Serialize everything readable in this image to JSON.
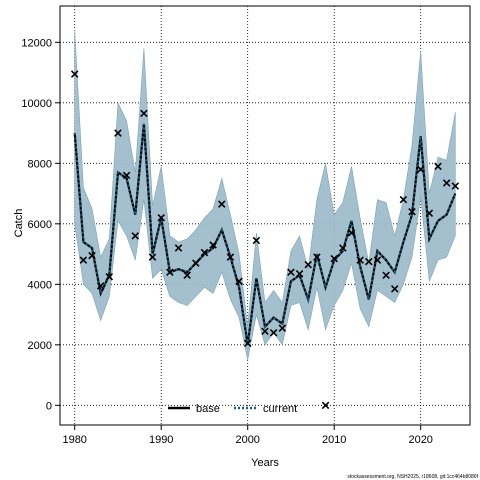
{
  "chart_data": {
    "type": "line",
    "title": "",
    "xlabel": "Years",
    "ylabel": "Catch",
    "xlim": [
      1980,
      2024
    ],
    "ylim": [
      0,
      12000
    ],
    "x_ticks": [
      "1980",
      "1990",
      "2000",
      "2010",
      "2020"
    ],
    "y_ticks": [
      "0",
      "2000",
      "4000",
      "6000",
      "8000",
      "10000",
      "12000"
    ],
    "grid": true,
    "legend_placement": "bottom-center",
    "colors": {
      "band": "#9fbdcc",
      "band_edge": "#7fa3b6",
      "base": "#000000",
      "current": "#1f5a7a",
      "observed": "#000000"
    },
    "years": [
      1980,
      1981,
      1982,
      1983,
      1984,
      1985,
      1986,
      1987,
      1988,
      1989,
      1990,
      1991,
      1992,
      1993,
      1994,
      1995,
      1996,
      1997,
      1998,
      1999,
      2000,
      2001,
      2002,
      2003,
      2004,
      2005,
      2006,
      2007,
      2008,
      2009,
      2010,
      2011,
      2012,
      2013,
      2014,
      2015,
      2016,
      2017,
      2018,
      2019,
      2020,
      2021,
      2022,
      2023,
      2024
    ],
    "series": [
      {
        "name": "base",
        "style": "solid",
        "values": [
          9000,
          5400,
          5200,
          3700,
          4300,
          7700,
          7500,
          6300,
          9300,
          5000,
          6200,
          4400,
          4500,
          4400,
          4700,
          5000,
          5200,
          5800,
          4900,
          3900,
          2000,
          4200,
          2600,
          2900,
          2700,
          4100,
          4300,
          3500,
          5000,
          3900,
          4800,
          5100,
          6100,
          4600,
          3500,
          5100,
          4800,
          4400,
          5400,
          6300,
          8900,
          5500,
          6100,
          6300,
          7000
        ]
      },
      {
        "name": "current",
        "style": "dotted",
        "values": [
          9000,
          5400,
          5200,
          3700,
          4300,
          7700,
          7500,
          6300,
          9300,
          5000,
          6200,
          4400,
          4500,
          4400,
          4700,
          5000,
          5200,
          5800,
          4900,
          3900,
          2000,
          4200,
          2600,
          2900,
          2700,
          4100,
          4300,
          3500,
          5000,
          3900,
          4800,
          5100,
          6100,
          4600,
          3500,
          5100,
          4800,
          4400,
          5400,
          6300,
          8900,
          5500,
          6100,
          6300,
          7000
        ]
      }
    ],
    "band_lower": [
      6000,
      4000,
      3700,
      2800,
      3600,
      6100,
      5600,
      4800,
      6800,
      4200,
      4500,
      3600,
      3400,
      3300,
      3600,
      3900,
      3700,
      4400,
      3500,
      2900,
      1500,
      3000,
      2000,
      2400,
      2000,
      3300,
      3400,
      2500,
      3900,
      2500,
      3300,
      3800,
      4700,
      3200,
      2600,
      3800,
      3600,
      3400,
      4000,
      4900,
      6900,
      4100,
      4800,
      4900,
      5600
    ],
    "band_upper": [
      12400,
      7200,
      6500,
      4900,
      5500,
      10000,
      9400,
      7700,
      11800,
      6600,
      7900,
      5600,
      5400,
      5500,
      5800,
      6200,
      6500,
      7500,
      6300,
      5000,
      2600,
      5700,
      3400,
      3800,
      3400,
      5100,
      5600,
      4500,
      6800,
      8000,
      6300,
      6700,
      7900,
      6200,
      4700,
      6800,
      6700,
      5600,
      6800,
      8600,
      11700,
      7000,
      8200,
      8100,
      9700
    ],
    "observed": [
      {
        "year": 1980,
        "value": 10950
      },
      {
        "year": 1981,
        "value": 4800
      },
      {
        "year": 1982,
        "value": 4950
      },
      {
        "year": 1983,
        "value": 3950
      },
      {
        "year": 1984,
        "value": 4250
      },
      {
        "year": 1985,
        "value": 9000
      },
      {
        "year": 1986,
        "value": 7600
      },
      {
        "year": 1987,
        "value": 5600
      },
      {
        "year": 1988,
        "value": 9650
      },
      {
        "year": 1989,
        "value": 4900
      },
      {
        "year": 1990,
        "value": 6200
      },
      {
        "year": 1991,
        "value": 4400
      },
      {
        "year": 1992,
        "value": 5200
      },
      {
        "year": 1993,
        "value": 4300
      },
      {
        "year": 1994,
        "value": 4700
      },
      {
        "year": 1995,
        "value": 5050
      },
      {
        "year": 1996,
        "value": 5300
      },
      {
        "year": 1997,
        "value": 6650
      },
      {
        "year": 1998,
        "value": 4900
      },
      {
        "year": 1999,
        "value": 4100
      },
      {
        "year": 2000,
        "value": 2050
      },
      {
        "year": 2001,
        "value": 5450
      },
      {
        "year": 2002,
        "value": 2450
      },
      {
        "year": 2003,
        "value": 2400
      },
      {
        "year": 2004,
        "value": 2550
      },
      {
        "year": 2005,
        "value": 4400
      },
      {
        "year": 2006,
        "value": 4350
      },
      {
        "year": 2007,
        "value": 4650
      },
      {
        "year": 2008,
        "value": 4900
      },
      {
        "year": 2009,
        "value": 0
      },
      {
        "year": 2010,
        "value": 4850
      },
      {
        "year": 2011,
        "value": 5200
      },
      {
        "year": 2012,
        "value": 5700
      },
      {
        "year": 2013,
        "value": 4800
      },
      {
        "year": 2014,
        "value": 4750
      },
      {
        "year": 2015,
        "value": 4800
      },
      {
        "year": 2016,
        "value": 4300
      },
      {
        "year": 2017,
        "value": 3850
      },
      {
        "year": 2018,
        "value": 6800
      },
      {
        "year": 2019,
        "value": 6400
      },
      {
        "year": 2020,
        "value": 7800
      },
      {
        "year": 2021,
        "value": 6350
      },
      {
        "year": 2022,
        "value": 7900
      },
      {
        "year": 2023,
        "value": 7350
      },
      {
        "year": 2024,
        "value": 7250
      }
    ]
  },
  "legend": {
    "base_label": "base",
    "current_label": "current"
  },
  "footer": {
    "note": "stockassessment.org, NSH2025, r18608, git:1cc464b8086f"
  }
}
